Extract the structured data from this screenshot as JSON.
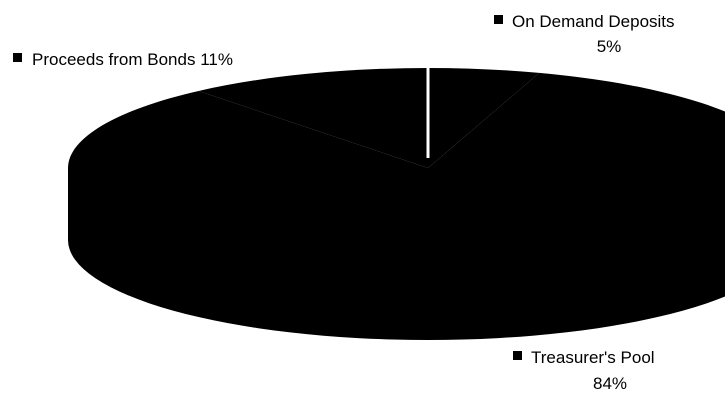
{
  "chart_data": {
    "type": "pie",
    "style": "3d",
    "categories": [
      "On Demand Deposits",
      "Treasurer's Pool",
      "Proceeds from Bonds"
    ],
    "values": [
      5,
      84,
      11
    ],
    "slice_labels": [
      {
        "name": "On Demand Deposits",
        "pct": "5%"
      },
      {
        "name": "Treasurer's Pool",
        "pct": "84%"
      },
      {
        "name": "Proceeds from Bonds",
        "pct": "11%"
      }
    ],
    "colors": {
      "fill": "#000000",
      "separator": "#ffffff",
      "background": "#ffffff"
    },
    "legend": "none"
  }
}
